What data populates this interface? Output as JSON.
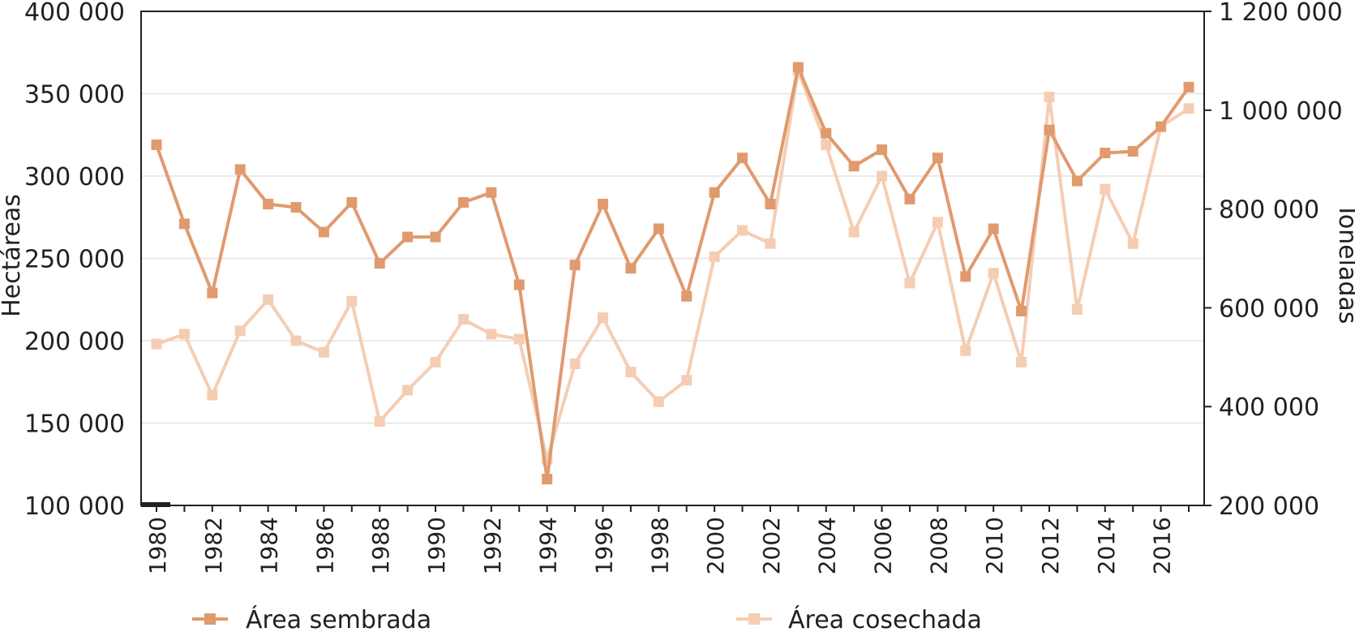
{
  "chart_data": {
    "type": "line",
    "x": [
      1980,
      1981,
      1982,
      1983,
      1984,
      1985,
      1986,
      1987,
      1988,
      1989,
      1990,
      1991,
      1992,
      1993,
      1994,
      1995,
      1996,
      1997,
      1998,
      1999,
      2000,
      2001,
      2002,
      2003,
      2004,
      2005,
      2006,
      2007,
      2008,
      2009,
      2010,
      2011,
      2012,
      2013,
      2014,
      2015,
      2016,
      2017
    ],
    "x_tick_labels": [
      "1980",
      "1982",
      "1984",
      "1986",
      "1988",
      "1990",
      "1992",
      "1994",
      "1996",
      "1998",
      "2000",
      "2002",
      "2004",
      "2006",
      "2008",
      "2010",
      "2012",
      "2014",
      "2016"
    ],
    "ylabel": "Hectáreas",
    "y2label": "Toneladas",
    "ylim": [
      100000,
      400000
    ],
    "y2lim": [
      200000,
      1200000
    ],
    "y_tick_labels": [
      "100 000",
      "150 000",
      "200 000",
      "250 000",
      "300 000",
      "350 000",
      "400 000"
    ],
    "y2_tick_labels": [
      "200 000",
      "400 000",
      "600 000",
      "800 000",
      "1 000 000",
      "1 200 000"
    ],
    "grid": true,
    "legend_position": "bottom",
    "series": [
      {
        "name": "Área sembrada",
        "axis": "left",
        "color": "#e09a6e",
        "values": [
          319000,
          271000,
          229000,
          304000,
          283000,
          281000,
          266000,
          284000,
          247000,
          263000,
          263000,
          284000,
          290000,
          234000,
          116000,
          246000,
          283000,
          244000,
          268000,
          227000,
          290000,
          311000,
          283000,
          366000,
          326000,
          306000,
          316000,
          286000,
          311000,
          239000,
          268000,
          218000,
          328000,
          297000,
          314000,
          315000,
          330000,
          354000
        ]
      },
      {
        "name": "Área cosechada",
        "axis": "left",
        "color": "#f5cdb3",
        "values": [
          198000,
          204000,
          167000,
          206000,
          225000,
          200000,
          193000,
          224000,
          151000,
          170000,
          187000,
          213000,
          204000,
          201000,
          128000,
          186000,
          214000,
          181000,
          163000,
          176000,
          251000,
          267000,
          259000,
          364000,
          319000,
          266000,
          300000,
          235000,
          272000,
          194000,
          241000,
          187000,
          348000,
          219000,
          292000,
          259000,
          330000,
          341000
        ]
      }
    ]
  }
}
